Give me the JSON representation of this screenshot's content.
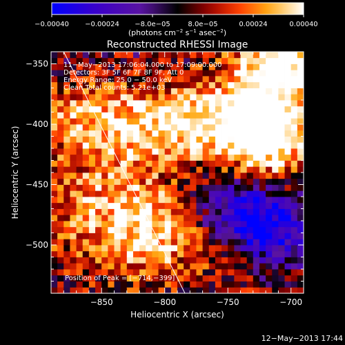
{
  "chart_data": {
    "type": "heatmap",
    "title": "Reconstructed RHESSI Image",
    "xlabel": "Heliocentric X (arcsec)",
    "ylabel": "Heliocentric Y (arcsec)",
    "xlim": [
      -890,
      -690
    ],
    "ylim": [
      -540,
      -340
    ],
    "xticks": [
      -850,
      -800,
      -750,
      -700
    ],
    "yticks": [
      -350,
      -400,
      -450,
      -500
    ],
    "x_tick_labels": [
      "−850",
      "−800",
      "−750",
      "−700"
    ],
    "y_tick_labels": [
      "−350",
      "−400",
      "−450",
      "−500"
    ],
    "colorbar": {
      "range": [
        -0.0004,
        0.0004
      ],
      "ticks": [
        -0.0004,
        -0.00024,
        -8e-05,
        8e-05,
        0.00024,
        0.0004
      ],
      "tick_labels": [
        "−0.00040",
        "−0.00024",
        "−8.0e−05",
        "8.0e−05",
        "0.00024",
        "0.00040"
      ],
      "unit_main": "(photons cm",
      "unit_exp1": "−2",
      "unit_mid": " s",
      "unit_exp2": "−1",
      "unit_end": " asec",
      "unit_exp3": "−2",
      "unit_close": ")"
    },
    "annotations": [
      "11−May−2013 17:06:04.000 to 17:09:00.000",
      "Detectors: 3F 5F 6F 7F 8F 9F, Att 0",
      "Energy Range: 25.0 − 50.0 keV",
      "Clean    Total counts: 5.21e+03"
    ],
    "peak_label": "Position of Peak = [−714,−399]",
    "peak_position": [
      -714,
      -399
    ],
    "limb_line": [
      [
        -880,
        -340
      ],
      [
        -784,
        -540
      ]
    ],
    "grid": false,
    "emission_regions": [
      {
        "center": [
          -770,
          -400
        ],
        "sigma": [
          45,
          22
        ],
        "amplitude": 0.00034
      },
      {
        "center": [
          -718,
          -382
        ],
        "sigma": [
          28,
          30
        ],
        "amplitude": 0.00034
      },
      {
        "center": [
          -715,
          -420
        ],
        "sigma": [
          20,
          18
        ],
        "amplitude": 0.00022
      },
      {
        "center": [
          -855,
          -395
        ],
        "sigma": [
          40,
          22
        ],
        "amplitude": 0.00022
      },
      {
        "center": [
          -840,
          -470
        ],
        "sigma": [
          45,
          35
        ],
        "amplitude": 0.00026
      },
      {
        "center": [
          -810,
          -495
        ],
        "sigma": [
          22,
          25
        ],
        "amplitude": 0.00018
      },
      {
        "center": [
          -745,
          -510
        ],
        "sigma": [
          25,
          22
        ],
        "amplitude": 0.00012
      },
      {
        "center": [
          -705,
          -350
        ],
        "sigma": [
          25,
          15
        ],
        "amplitude": 0.0003
      },
      {
        "center": [
          -720,
          -490
        ],
        "sigma": [
          25,
          20
        ],
        "amplitude": -0.0004
      },
      {
        "center": [
          -740,
          -470
        ],
        "sigma": [
          22,
          15
        ],
        "amplitude": -0.00025
      },
      {
        "center": [
          -780,
          -445
        ],
        "sigma": [
          22,
          14
        ],
        "amplitude": -8e-05
      }
    ],
    "background_level": 3e-05
  },
  "footer_timestamp": "12−May−2013 17:44"
}
